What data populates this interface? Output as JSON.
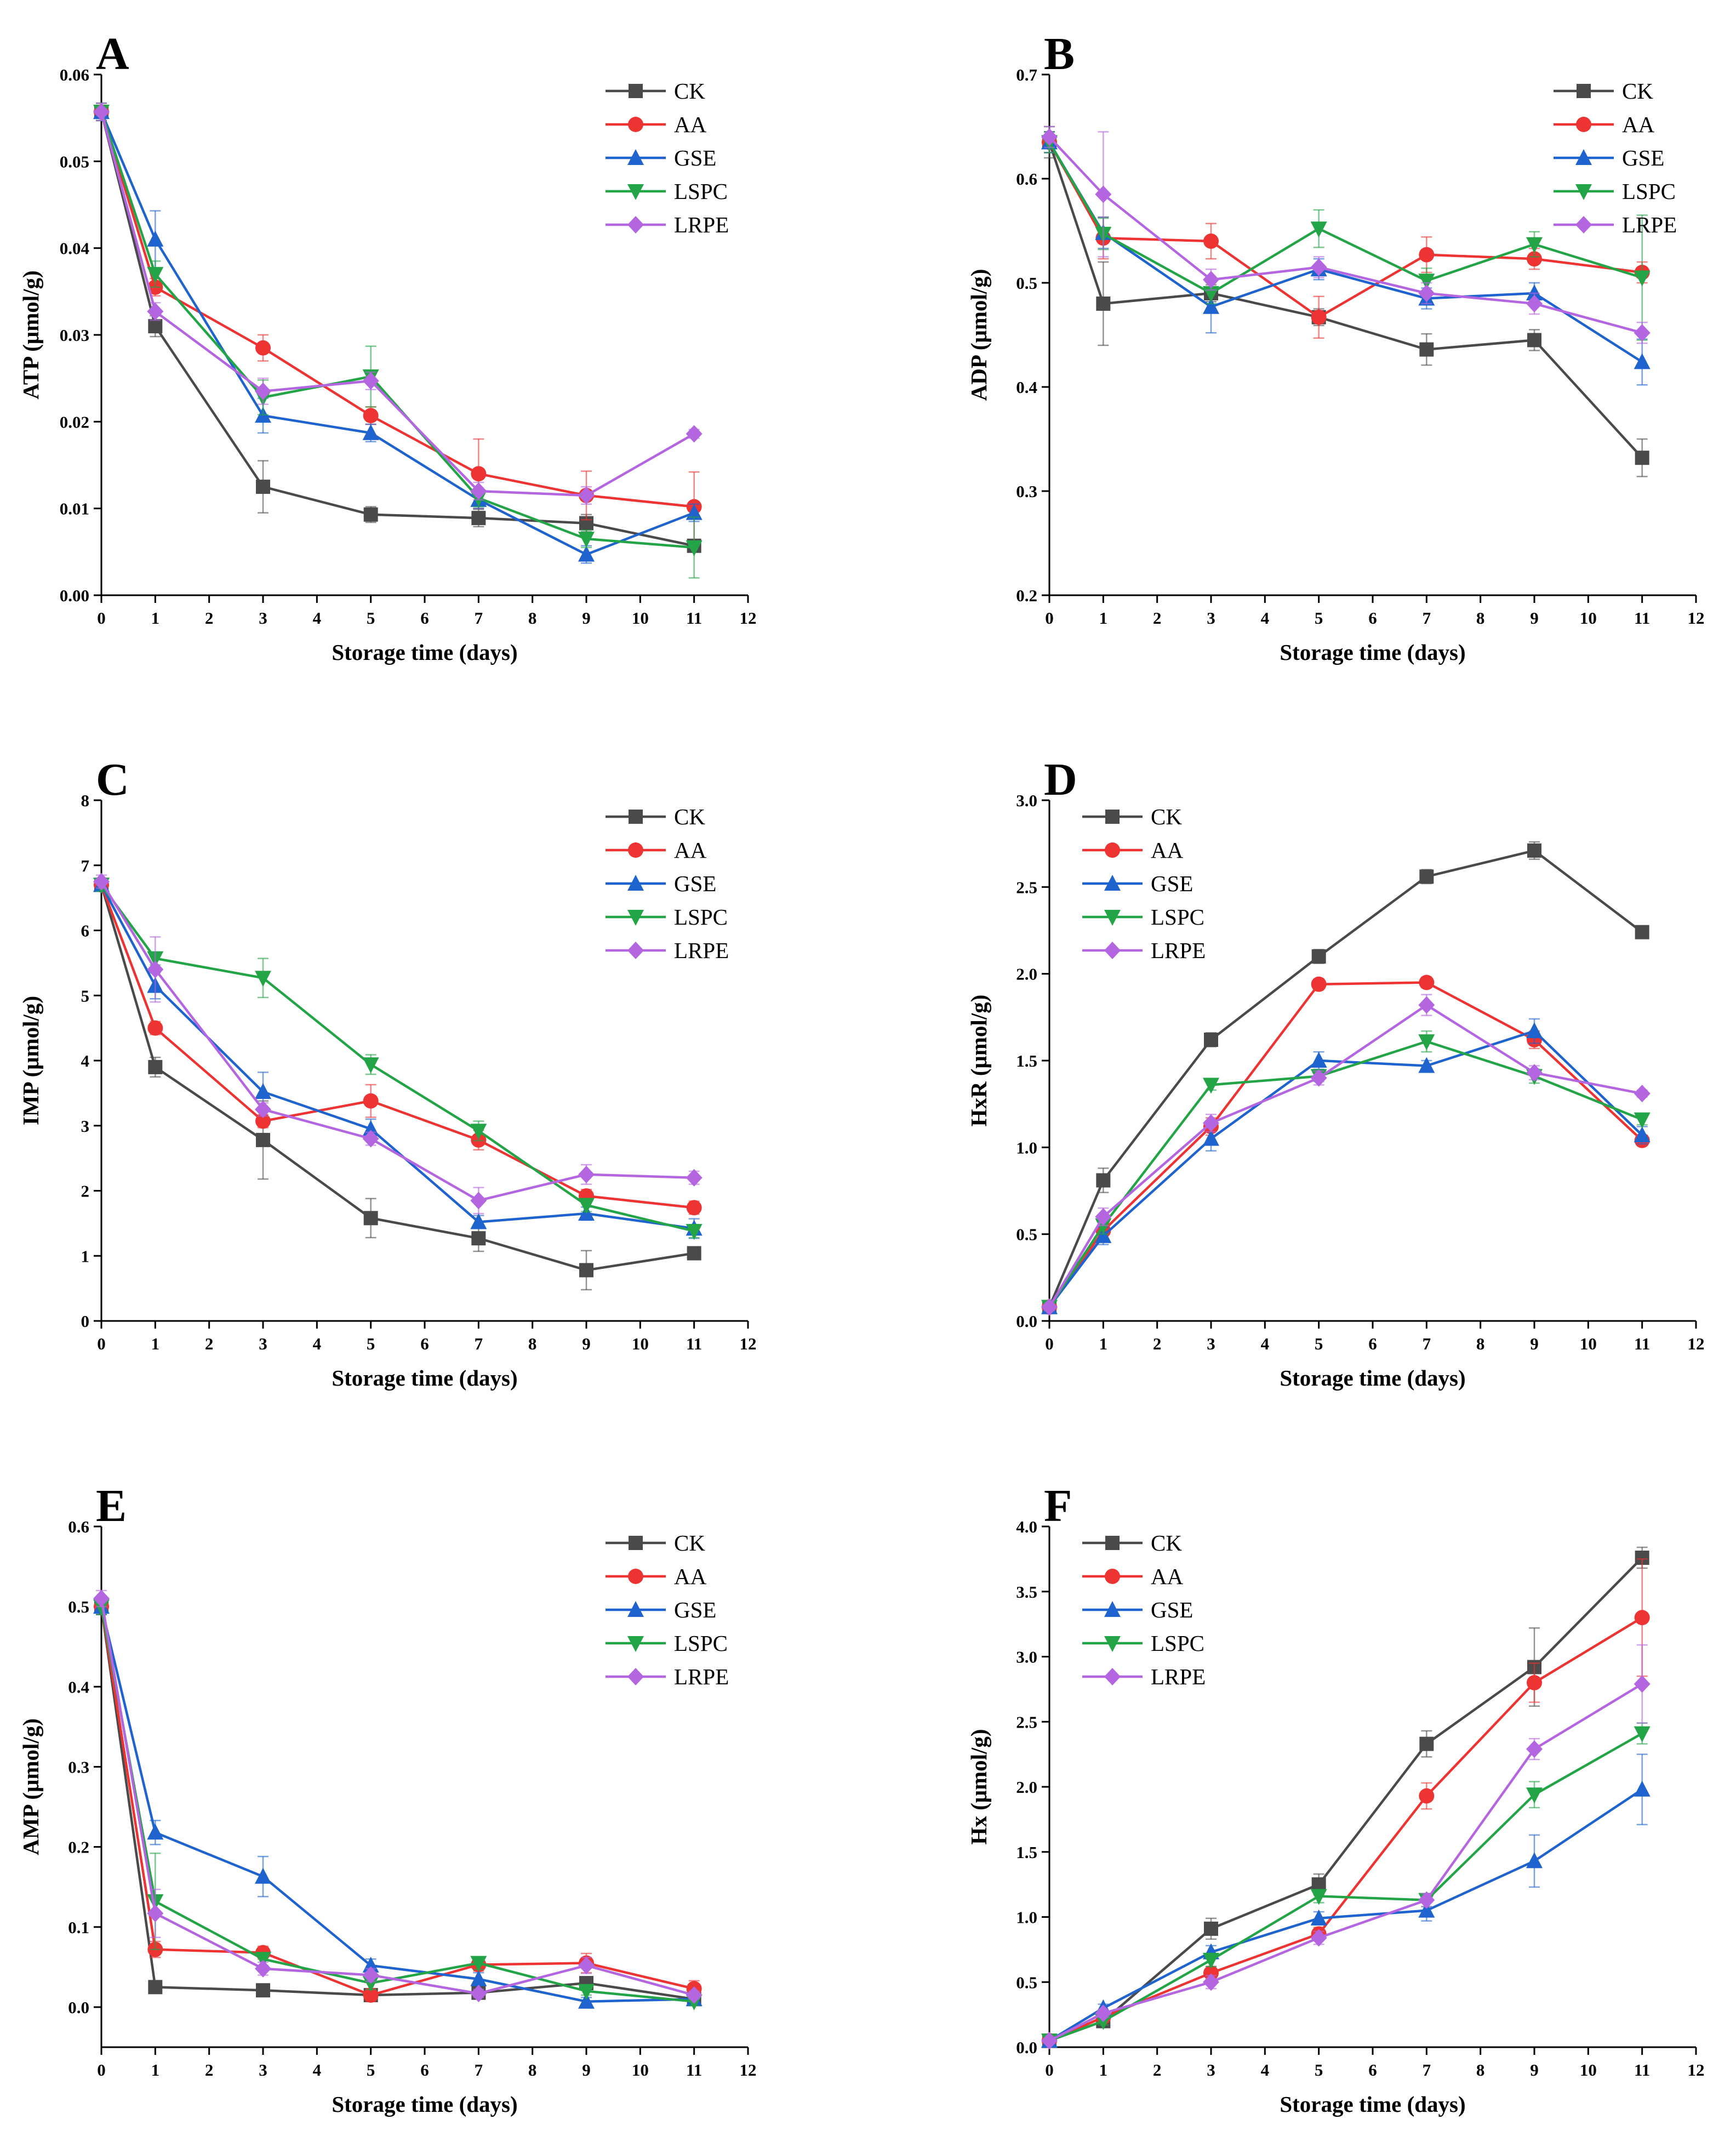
{
  "figure": {
    "series_styles": [
      {
        "name": "CK",
        "color": "#4a4a4a",
        "marker": "square"
      },
      {
        "name": "AA",
        "color": "#ee3333",
        "marker": "circle"
      },
      {
        "name": "GSE",
        "color": "#1f63cf",
        "marker": "triangle-up"
      },
      {
        "name": "LSPC",
        "color": "#22a447",
        "marker": "triangle-down"
      },
      {
        "name": "LRPE",
        "color": "#b366e0",
        "marker": "diamond"
      }
    ]
  },
  "chart_data": [
    {
      "panel": "A",
      "type": "line",
      "xlabel": "Storage time (days)",
      "ylabel": "ATP (μmol/g)",
      "xlim": [
        0,
        12
      ],
      "ylim": [
        0,
        0.06
      ],
      "xticks": [
        0,
        1,
        2,
        3,
        4,
        5,
        6,
        7,
        8,
        9,
        10,
        11,
        12
      ],
      "yticks": [
        "0.00",
        "0.01",
        "0.02",
        "0.03",
        "0.04",
        "0.05",
        "0.06"
      ],
      "legend": "top-right",
      "x": [
        0,
        1,
        3,
        5,
        7,
        9,
        11
      ],
      "series": [
        {
          "name": "CK",
          "values": [
            0.0557,
            0.031,
            0.0125,
            0.0093,
            0.0089,
            0.0083,
            0.0057
          ],
          "errors": [
            0.001,
            0.0012,
            0.003,
            0.0009,
            0.001,
            0.001,
            0.0005
          ]
        },
        {
          "name": "AA",
          "values": [
            0.0557,
            0.0355,
            0.0285,
            0.0207,
            0.014,
            0.0115,
            0.0102
          ],
          "errors": [
            0.001,
            0.001,
            0.0015,
            0.001,
            0.004,
            0.0028,
            0.004
          ]
        },
        {
          "name": "GSE",
          "values": [
            0.0557,
            0.041,
            0.0207,
            0.0187,
            0.011,
            0.0047,
            0.0095
          ],
          "errors": [
            0.001,
            0.0033,
            0.002,
            0.001,
            0.001,
            0.001,
            0.001
          ]
        },
        {
          "name": "LSPC",
          "values": [
            0.0557,
            0.037,
            0.0228,
            0.0252,
            0.0112,
            0.0065,
            0.0055
          ],
          "errors": [
            0.001,
            0.0015,
            0.002,
            0.0035,
            0.001,
            0.001,
            0.0035
          ]
        },
        {
          "name": "LRPE",
          "values": [
            0.0557,
            0.0327,
            0.0235,
            0.0247,
            0.012,
            0.0115,
            0.0186
          ],
          "errors": [
            0.001,
            0.001,
            0.0015,
            0.001,
            0.001,
            0.001,
            0.0005
          ]
        }
      ]
    },
    {
      "panel": "B",
      "type": "line",
      "xlabel": "Storage time (days)",
      "ylabel": "ADP (μmol/g)",
      "xlim": [
        0,
        12
      ],
      "ylim": [
        0.2,
        0.7
      ],
      "xticks": [
        0,
        1,
        2,
        3,
        4,
        5,
        6,
        7,
        8,
        9,
        10,
        11,
        12
      ],
      "yticks": [
        "0.2",
        "0.3",
        "0.4",
        "0.5",
        "0.6",
        "0.7"
      ],
      "legend": "top-right",
      "x": [
        0,
        1,
        3,
        5,
        7,
        9,
        11
      ],
      "series": [
        {
          "name": "CK",
          "values": [
            0.635,
            0.48,
            0.49,
            0.467,
            0.436,
            0.445,
            0.332
          ],
          "errors": [
            0.015,
            0.04,
            0.008,
            0.008,
            0.015,
            0.01,
            0.018
          ]
        },
        {
          "name": "AA",
          "values": [
            0.635,
            0.543,
            0.54,
            0.467,
            0.527,
            0.523,
            0.51
          ],
          "errors": [
            0.01,
            0.02,
            0.017,
            0.02,
            0.017,
            0.01,
            0.01
          ]
        },
        {
          "name": "GSE",
          "values": [
            0.635,
            0.548,
            0.477,
            0.513,
            0.485,
            0.49,
            0.424
          ],
          "errors": [
            0.01,
            0.015,
            0.025,
            0.01,
            0.01,
            0.01,
            0.022
          ]
        },
        {
          "name": "LSPC",
          "values": [
            0.635,
            0.547,
            0.49,
            0.552,
            0.502,
            0.537,
            0.505
          ],
          "errors": [
            0.01,
            0.015,
            0.01,
            0.018,
            0.012,
            0.012,
            0.06
          ]
        },
        {
          "name": "LRPE",
          "values": [
            0.64,
            0.585,
            0.503,
            0.515,
            0.49,
            0.48,
            0.452
          ],
          "errors": [
            0.01,
            0.06,
            0.01,
            0.01,
            0.01,
            0.01,
            0.01
          ]
        }
      ]
    },
    {
      "panel": "C",
      "type": "line",
      "xlabel": "Storage time (days)",
      "ylabel": "IMP (μmol/g)",
      "xlim": [
        0,
        12
      ],
      "ylim": [
        0,
        8
      ],
      "xticks": [
        0,
        1,
        2,
        3,
        4,
        5,
        6,
        7,
        8,
        9,
        10,
        11,
        12
      ],
      "yticks": [
        "0",
        "1",
        "2",
        "3",
        "4",
        "5",
        "6",
        "7",
        "8"
      ],
      "legend": "top-right",
      "x": [
        0,
        1,
        3,
        5,
        7,
        9,
        11
      ],
      "series": [
        {
          "name": "CK",
          "values": [
            6.7,
            3.9,
            2.78,
            1.58,
            1.27,
            0.78,
            1.04
          ],
          "errors": [
            0.1,
            0.15,
            0.6,
            0.3,
            0.2,
            0.3,
            0.08
          ]
        },
        {
          "name": "AA",
          "values": [
            6.7,
            4.5,
            3.07,
            3.38,
            2.78,
            1.92,
            1.74
          ],
          "errors": [
            0.1,
            0.1,
            0.1,
            0.25,
            0.15,
            0.1,
            0.1
          ]
        },
        {
          "name": "GSE",
          "values": [
            6.7,
            5.15,
            3.52,
            2.95,
            1.52,
            1.65,
            1.42
          ],
          "errors": [
            0.1,
            0.2,
            0.3,
            0.15,
            0.1,
            0.1,
            0.15
          ]
        },
        {
          "name": "LSPC",
          "values": [
            6.7,
            5.57,
            5.27,
            3.94,
            2.92,
            1.78,
            1.38
          ],
          "errors": [
            0.1,
            0.1,
            0.3,
            0.15,
            0.15,
            0.1,
            0.1
          ]
        },
        {
          "name": "LRPE",
          "values": [
            6.75,
            5.4,
            3.25,
            2.8,
            1.85,
            2.25,
            2.2
          ],
          "errors": [
            0.1,
            0.5,
            0.1,
            0.1,
            0.2,
            0.15,
            0.1
          ]
        }
      ]
    },
    {
      "panel": "D",
      "type": "line",
      "xlabel": "Storage time (days)",
      "ylabel": "HxR (μmol/g)",
      "xlim": [
        0,
        12
      ],
      "ylim": [
        0,
        3
      ],
      "xticks": [
        0,
        1,
        2,
        3,
        4,
        5,
        6,
        7,
        8,
        9,
        10,
        11,
        12
      ],
      "yticks": [
        "0.0",
        "0.5",
        "1.0",
        "1.5",
        "2.0",
        "2.5",
        "3.0"
      ],
      "legend": "top-left",
      "x": [
        0,
        1,
        3,
        5,
        7,
        9,
        11
      ],
      "series": [
        {
          "name": "CK",
          "values": [
            0.08,
            0.81,
            1.62,
            2.1,
            2.56,
            2.71,
            2.24
          ],
          "errors": [
            0.02,
            0.07,
            0.04,
            0.04,
            0.04,
            0.05,
            0.02
          ]
        },
        {
          "name": "AA",
          "values": [
            0.08,
            0.52,
            1.12,
            1.94,
            1.95,
            1.62,
            1.04
          ],
          "errors": [
            0.02,
            0.05,
            0.05,
            0.03,
            0.03,
            0.05,
            0.03
          ]
        },
        {
          "name": "GSE",
          "values": [
            0.08,
            0.49,
            1.05,
            1.5,
            1.47,
            1.67,
            1.07
          ],
          "errors": [
            0.02,
            0.05,
            0.07,
            0.05,
            0.03,
            0.07,
            0.05
          ]
        },
        {
          "name": "LSPC",
          "values": [
            0.08,
            0.55,
            1.36,
            1.41,
            1.61,
            1.41,
            1.16
          ],
          "errors": [
            0.02,
            0.05,
            0.03,
            0.03,
            0.06,
            0.04,
            0.03
          ]
        },
        {
          "name": "LRPE",
          "values": [
            0.08,
            0.6,
            1.14,
            1.4,
            1.82,
            1.43,
            1.31
          ],
          "errors": [
            0.02,
            0.05,
            0.05,
            0.04,
            0.06,
            0.04,
            0.02
          ]
        }
      ]
    },
    {
      "panel": "E",
      "type": "line",
      "xlabel": "Storage time (days)",
      "ylabel": "AMP (μmol/g)",
      "xlim": [
        0,
        12
      ],
      "ylim": [
        -0.05,
        0.6
      ],
      "xticks": [
        0,
        1,
        2,
        3,
        4,
        5,
        6,
        7,
        8,
        9,
        10,
        11,
        12
      ],
      "yticks": [
        "0.0",
        "0.1",
        "0.2",
        "0.3",
        "0.4",
        "0.5",
        "0.6"
      ],
      "legend": "top-right",
      "x": [
        0,
        1,
        3,
        5,
        7,
        9,
        11
      ],
      "series": [
        {
          "name": "CK",
          "values": [
            0.5,
            0.025,
            0.021,
            0.015,
            0.018,
            0.03,
            0.01
          ],
          "errors": [
            0.01,
            0.005,
            0.005,
            0.005,
            0.005,
            0.005,
            0.005
          ]
        },
        {
          "name": "AA",
          "values": [
            0.5,
            0.072,
            0.068,
            0.015,
            0.053,
            0.055,
            0.023
          ],
          "errors": [
            0.01,
            0.01,
            0.008,
            0.008,
            0.008,
            0.012,
            0.01
          ]
        },
        {
          "name": "GSE",
          "values": [
            0.5,
            0.218,
            0.163,
            0.052,
            0.035,
            0.007,
            0.01
          ],
          "errors": [
            0.01,
            0.015,
            0.025,
            0.008,
            0.008,
            0.005,
            0.005
          ]
        },
        {
          "name": "LSPC",
          "values": [
            0.5,
            0.132,
            0.06,
            0.03,
            0.055,
            0.02,
            0.007
          ],
          "errors": [
            0.01,
            0.06,
            0.008,
            0.008,
            0.008,
            0.005,
            0.005
          ]
        },
        {
          "name": "LRPE",
          "values": [
            0.51,
            0.117,
            0.048,
            0.04,
            0.017,
            0.052,
            0.015
          ],
          "errors": [
            0.01,
            0.03,
            0.008,
            0.008,
            0.005,
            0.01,
            0.005
          ]
        }
      ]
    },
    {
      "panel": "F",
      "type": "line",
      "xlabel": "Storage time (days)",
      "ylabel": "Hx (μmol/g)",
      "xlim": [
        0,
        12
      ],
      "ylim": [
        0,
        4
      ],
      "xticks": [
        0,
        1,
        2,
        3,
        4,
        5,
        6,
        7,
        8,
        9,
        10,
        11,
        12
      ],
      "yticks": [
        "0.0",
        "0.5",
        "1.0",
        "1.5",
        "2.0",
        "2.5",
        "3.0",
        "3.5",
        "4.0"
      ],
      "legend": "top-left",
      "x": [
        0,
        1,
        3,
        5,
        7,
        9,
        11
      ],
      "series": [
        {
          "name": "CK",
          "values": [
            0.05,
            0.2,
            0.91,
            1.25,
            2.33,
            2.92,
            3.76
          ],
          "errors": [
            0.02,
            0.03,
            0.08,
            0.08,
            0.1,
            0.3,
            0.08
          ]
        },
        {
          "name": "AA",
          "values": [
            0.05,
            0.23,
            0.57,
            0.87,
            1.93,
            2.8,
            3.3
          ],
          "errors": [
            0.02,
            0.03,
            0.05,
            0.05,
            0.1,
            0.15,
            0.45
          ]
        },
        {
          "name": "GSE",
          "values": [
            0.05,
            0.3,
            0.73,
            0.99,
            1.05,
            1.43,
            1.98
          ],
          "errors": [
            0.02,
            0.03,
            0.05,
            0.05,
            0.08,
            0.2,
            0.27
          ]
        },
        {
          "name": "LSPC",
          "values": [
            0.05,
            0.2,
            0.67,
            1.16,
            1.13,
            1.94,
            2.41
          ],
          "errors": [
            0.02,
            0.03,
            0.05,
            0.05,
            0.05,
            0.1,
            0.08
          ]
        },
        {
          "name": "LRPE",
          "values": [
            0.05,
            0.26,
            0.5,
            0.84,
            1.13,
            2.29,
            2.79
          ],
          "errors": [
            0.02,
            0.03,
            0.05,
            0.05,
            0.05,
            0.08,
            0.3
          ]
        }
      ]
    }
  ]
}
